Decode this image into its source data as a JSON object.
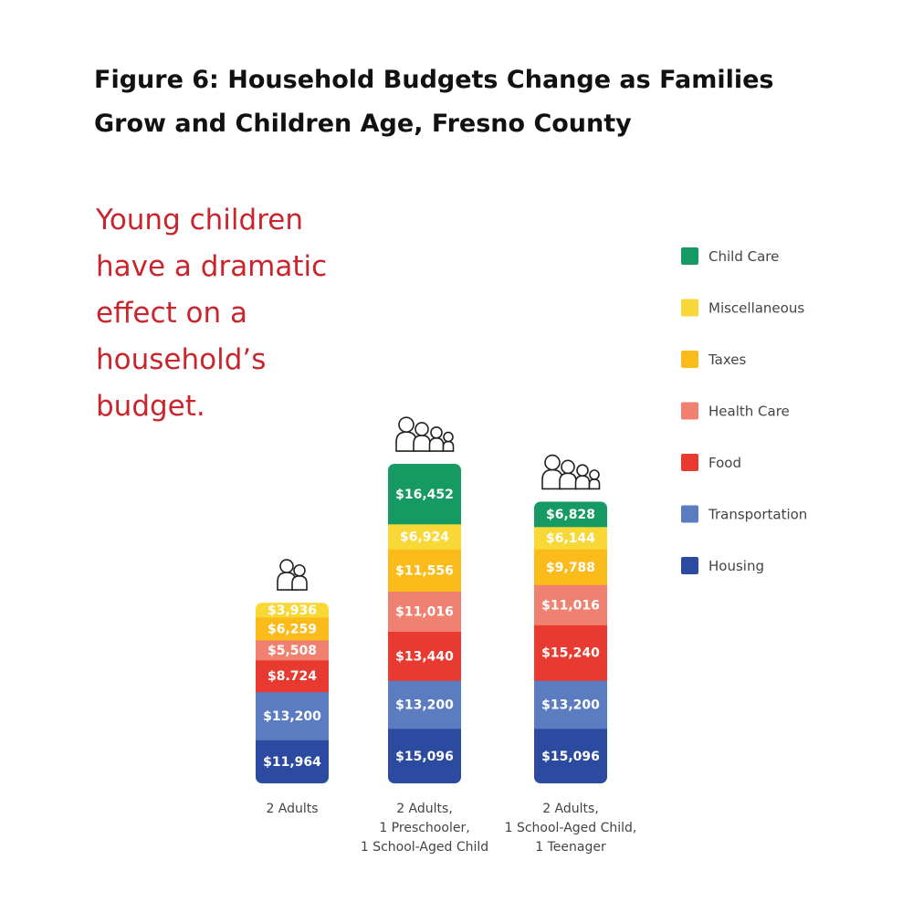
{
  "title_lines": [
    "Figure 6: Household Budgets Change as Families",
    "Grow and Children Age, Fresno County"
  ],
  "tagline_lines": [
    "Young children",
    "have a dramatic",
    "effect on a",
    "household’s",
    "budget."
  ],
  "chart_data": {
    "type": "bar",
    "stacked": true,
    "categories": [
      [
        "2 Adults"
      ],
      [
        "2 Adults,",
        "1 Preschooler,",
        "1 School-Aged Child"
      ],
      [
        "2 Adults,",
        "1 School-Aged Child,",
        "1 Teenager"
      ]
    ],
    "series": [
      {
        "name": "Housing",
        "color": "#2b4aa0",
        "values": [
          11964,
          15096,
          15096
        ],
        "labels": [
          "$11,964",
          "$15,096",
          "$15,096"
        ]
      },
      {
        "name": "Transportation",
        "color": "#5b7cc1",
        "values": [
          13200,
          13200,
          13200
        ],
        "labels": [
          "$13,200",
          "$13,200",
          "$13,200"
        ]
      },
      {
        "name": "Food",
        "color": "#e83a30",
        "values": [
          8724,
          13440,
          15240
        ],
        "labels": [
          "$8.724",
          "$13,440",
          "$15,240"
        ]
      },
      {
        "name": "Health Care",
        "color": "#f08070",
        "values": [
          5508,
          11016,
          11016
        ],
        "labels": [
          "$5,508",
          "$11,016",
          "$11,016"
        ]
      },
      {
        "name": "Taxes",
        "color": "#fbbb1a",
        "values": [
          6259,
          11556,
          9788
        ],
        "labels": [
          "$6,259",
          "$11,556",
          "$9,788"
        ]
      },
      {
        "name": "Miscellaneous",
        "color": "#f7d836",
        "values": [
          3936,
          6924,
          6144
        ],
        "labels": [
          "$3,936",
          "$6,924",
          "$6,144"
        ]
      },
      {
        "name": "Child Care",
        "color": "#169a63",
        "values": [
          0,
          16452,
          6828
        ],
        "labels": [
          "",
          "$16,452",
          "$6,828"
        ]
      }
    ],
    "legend_order": [
      "Child Care",
      "Miscellaneous",
      "Taxes",
      "Health Care",
      "Food",
      "Transportation",
      "Housing"
    ],
    "family_icons": [
      "two-person-icon",
      "four-person-icon",
      "four-person-icon"
    ],
    "legend_position": "right"
  }
}
